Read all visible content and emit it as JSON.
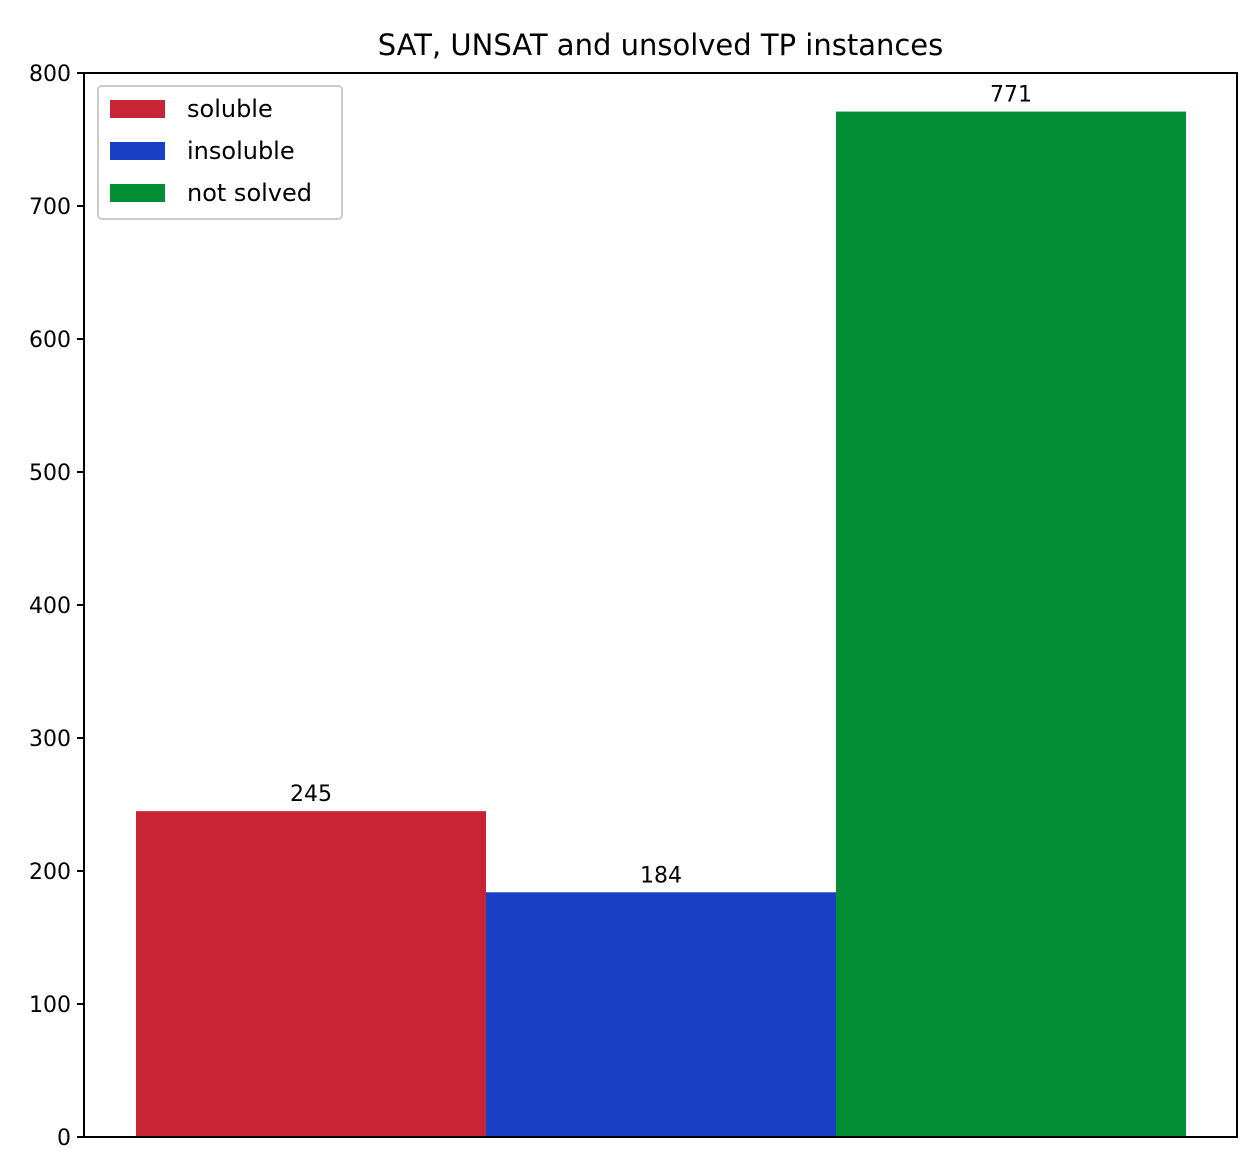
{
  "chart_data": {
    "type": "bar",
    "title": "SAT, UNSAT and unsolved TP instances",
    "xlabel": "",
    "ylabel": "",
    "ylim": [
      0,
      800
    ],
    "yticks": [
      0,
      100,
      200,
      300,
      400,
      500,
      600,
      700,
      800
    ],
    "grid": false,
    "legend_position": "top-left",
    "series": [
      {
        "name": "soluble",
        "value": 245,
        "label": "245",
        "color": "#c92435"
      },
      {
        "name": "insoluble",
        "value": 184,
        "label": "184",
        "color": "#183fc6"
      },
      {
        "name": "not solved",
        "value": 771,
        "label": "771",
        "color": "#038d34"
      }
    ]
  }
}
